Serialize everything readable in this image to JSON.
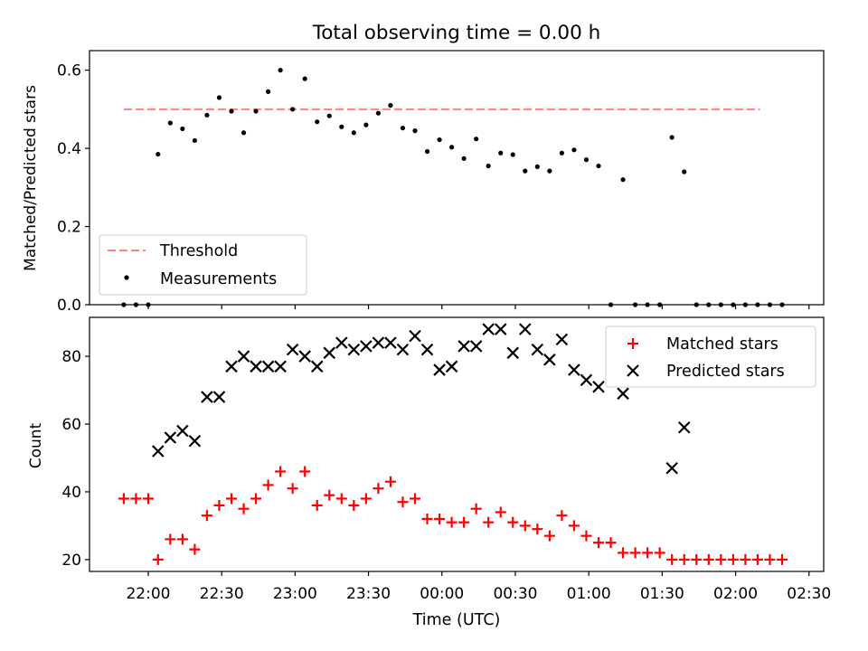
{
  "chart_data": [
    {
      "type": "scatter",
      "title": "Total observing time = 0.00 h",
      "xlabel": "",
      "ylabel": "Matched/Predicted stars",
      "xlim": [
        "21:36",
        "02:36"
      ],
      "ylim": [
        0.0,
        0.65
      ],
      "yticks": [
        0.0,
        0.2,
        0.4,
        0.6
      ],
      "ytick_labels": [
        "0.0",
        "0.2",
        "0.4",
        "0.6"
      ],
      "threshold": {
        "name": "Threshold",
        "value": 0.5,
        "x_range": [
          "21:50",
          "02:10"
        ],
        "color": "#ff7f7f",
        "style": "dashed"
      },
      "legend": {
        "placement": "lower-left",
        "entries": [
          "Threshold",
          "Measurements"
        ]
      },
      "series": [
        {
          "name": "Measurements",
          "marker": "dot",
          "color": "#000000",
          "x": [
            "21:50",
            "21:55",
            "22:00",
            "22:04",
            "22:09",
            "22:14",
            "22:19",
            "22:24",
            "22:29",
            "22:34",
            "22:39",
            "22:44",
            "22:49",
            "22:54",
            "22:59",
            "23:04",
            "23:09",
            "23:14",
            "23:19",
            "23:24",
            "23:29",
            "23:34",
            "23:39",
            "23:44",
            "23:49",
            "23:54",
            "23:59",
            "00:04",
            "00:09",
            "00:14",
            "00:19",
            "00:24",
            "00:29",
            "00:34",
            "00:39",
            "00:44",
            "00:49",
            "00:54",
            "00:59",
            "01:04",
            "01:09",
            "01:14",
            "01:19",
            "01:24",
            "01:29",
            "01:34",
            "01:39",
            "01:44",
            "01:49",
            "01:54",
            "01:59",
            "02:04",
            "02:09",
            "02:14",
            "02:19"
          ],
          "y": [
            0.0,
            0.0,
            0.0,
            0.385,
            0.465,
            0.45,
            0.42,
            0.485,
            0.53,
            0.495,
            0.44,
            0.495,
            0.545,
            0.6,
            0.5,
            0.578,
            0.468,
            0.483,
            0.455,
            0.44,
            0.46,
            0.49,
            0.51,
            0.452,
            0.445,
            0.392,
            0.422,
            0.403,
            0.374,
            0.424,
            0.355,
            0.388,
            0.384,
            0.342,
            0.353,
            0.342,
            0.388,
            0.396,
            0.371,
            0.355,
            0.0,
            0.32,
            0.0,
            0.0,
            0.0,
            0.428,
            0.34,
            0.0,
            0.0,
            0.0,
            0.0,
            0.0,
            0.0,
            0.0,
            0.0
          ]
        }
      ]
    },
    {
      "type": "scatter",
      "title": "",
      "xlabel": "Time (UTC)",
      "ylabel": "Count",
      "xlim": [
        "21:36",
        "02:36"
      ],
      "xticks": [
        "22:00",
        "22:30",
        "23:00",
        "23:30",
        "00:00",
        "00:30",
        "01:00",
        "01:30",
        "02:00",
        "02:30"
      ],
      "ylim": [
        16.5,
        91.5
      ],
      "yticks": [
        20,
        40,
        60,
        80
      ],
      "ytick_labels": [
        "20",
        "40",
        "60",
        "80"
      ],
      "legend": {
        "placement": "top-right",
        "entries": [
          "Matched stars",
          "Predicted stars"
        ]
      },
      "series": [
        {
          "name": "Matched stars",
          "marker": "plus",
          "color": "#ff0000",
          "x": [
            "21:50",
            "21:55",
            "22:00",
            "22:04",
            "22:09",
            "22:14",
            "22:19",
            "22:24",
            "22:29",
            "22:34",
            "22:39",
            "22:44",
            "22:49",
            "22:54",
            "22:59",
            "23:04",
            "23:09",
            "23:14",
            "23:19",
            "23:24",
            "23:29",
            "23:34",
            "23:39",
            "23:44",
            "23:49",
            "23:54",
            "23:59",
            "00:04",
            "00:09",
            "00:14",
            "00:19",
            "00:24",
            "00:29",
            "00:34",
            "00:39",
            "00:44",
            "00:49",
            "00:54",
            "00:59",
            "01:04",
            "01:09",
            "01:14",
            "01:19",
            "01:24",
            "01:29",
            "01:34",
            "01:39",
            "01:44",
            "01:49",
            "01:54",
            "01:59",
            "02:04",
            "02:09",
            "02:14",
            "02:19"
          ],
          "y": [
            38,
            38,
            38,
            20,
            26,
            26,
            23,
            33,
            36,
            38,
            35,
            38,
            42,
            46,
            41,
            46,
            36,
            39,
            38,
            36,
            38,
            41,
            43,
            37,
            38,
            32,
            32,
            31,
            31,
            35,
            31,
            34,
            31,
            30,
            29,
            27,
            33,
            30,
            27,
            25,
            25,
            22,
            22,
            22,
            22,
            20,
            20,
            20,
            20,
            20,
            20,
            20,
            20,
            20,
            20
          ]
        },
        {
          "name": "Predicted stars",
          "marker": "x",
          "color": "#000000",
          "x": [
            "22:04",
            "22:09",
            "22:14",
            "22:19",
            "22:24",
            "22:29",
            "22:34",
            "22:39",
            "22:44",
            "22:49",
            "22:54",
            "22:59",
            "23:04",
            "23:09",
            "23:14",
            "23:19",
            "23:24",
            "23:29",
            "23:34",
            "23:39",
            "23:44",
            "23:49",
            "23:54",
            "23:59",
            "00:04",
            "00:09",
            "00:14",
            "00:19",
            "00:24",
            "00:29",
            "00:34",
            "00:39",
            "00:44",
            "00:49",
            "00:54",
            "00:59",
            "01:04",
            "01:14",
            "01:34",
            "01:39"
          ],
          "y": [
            52,
            56,
            58,
            55,
            68,
            68,
            77,
            80,
            77,
            77,
            77,
            82,
            80,
            77,
            81,
            84,
            82,
            83,
            84,
            84,
            82,
            86,
            82,
            76,
            77,
            83,
            83,
            88,
            88,
            81,
            88,
            82,
            79,
            85,
            76,
            73,
            71,
            69,
            47,
            59
          ]
        }
      ]
    }
  ]
}
